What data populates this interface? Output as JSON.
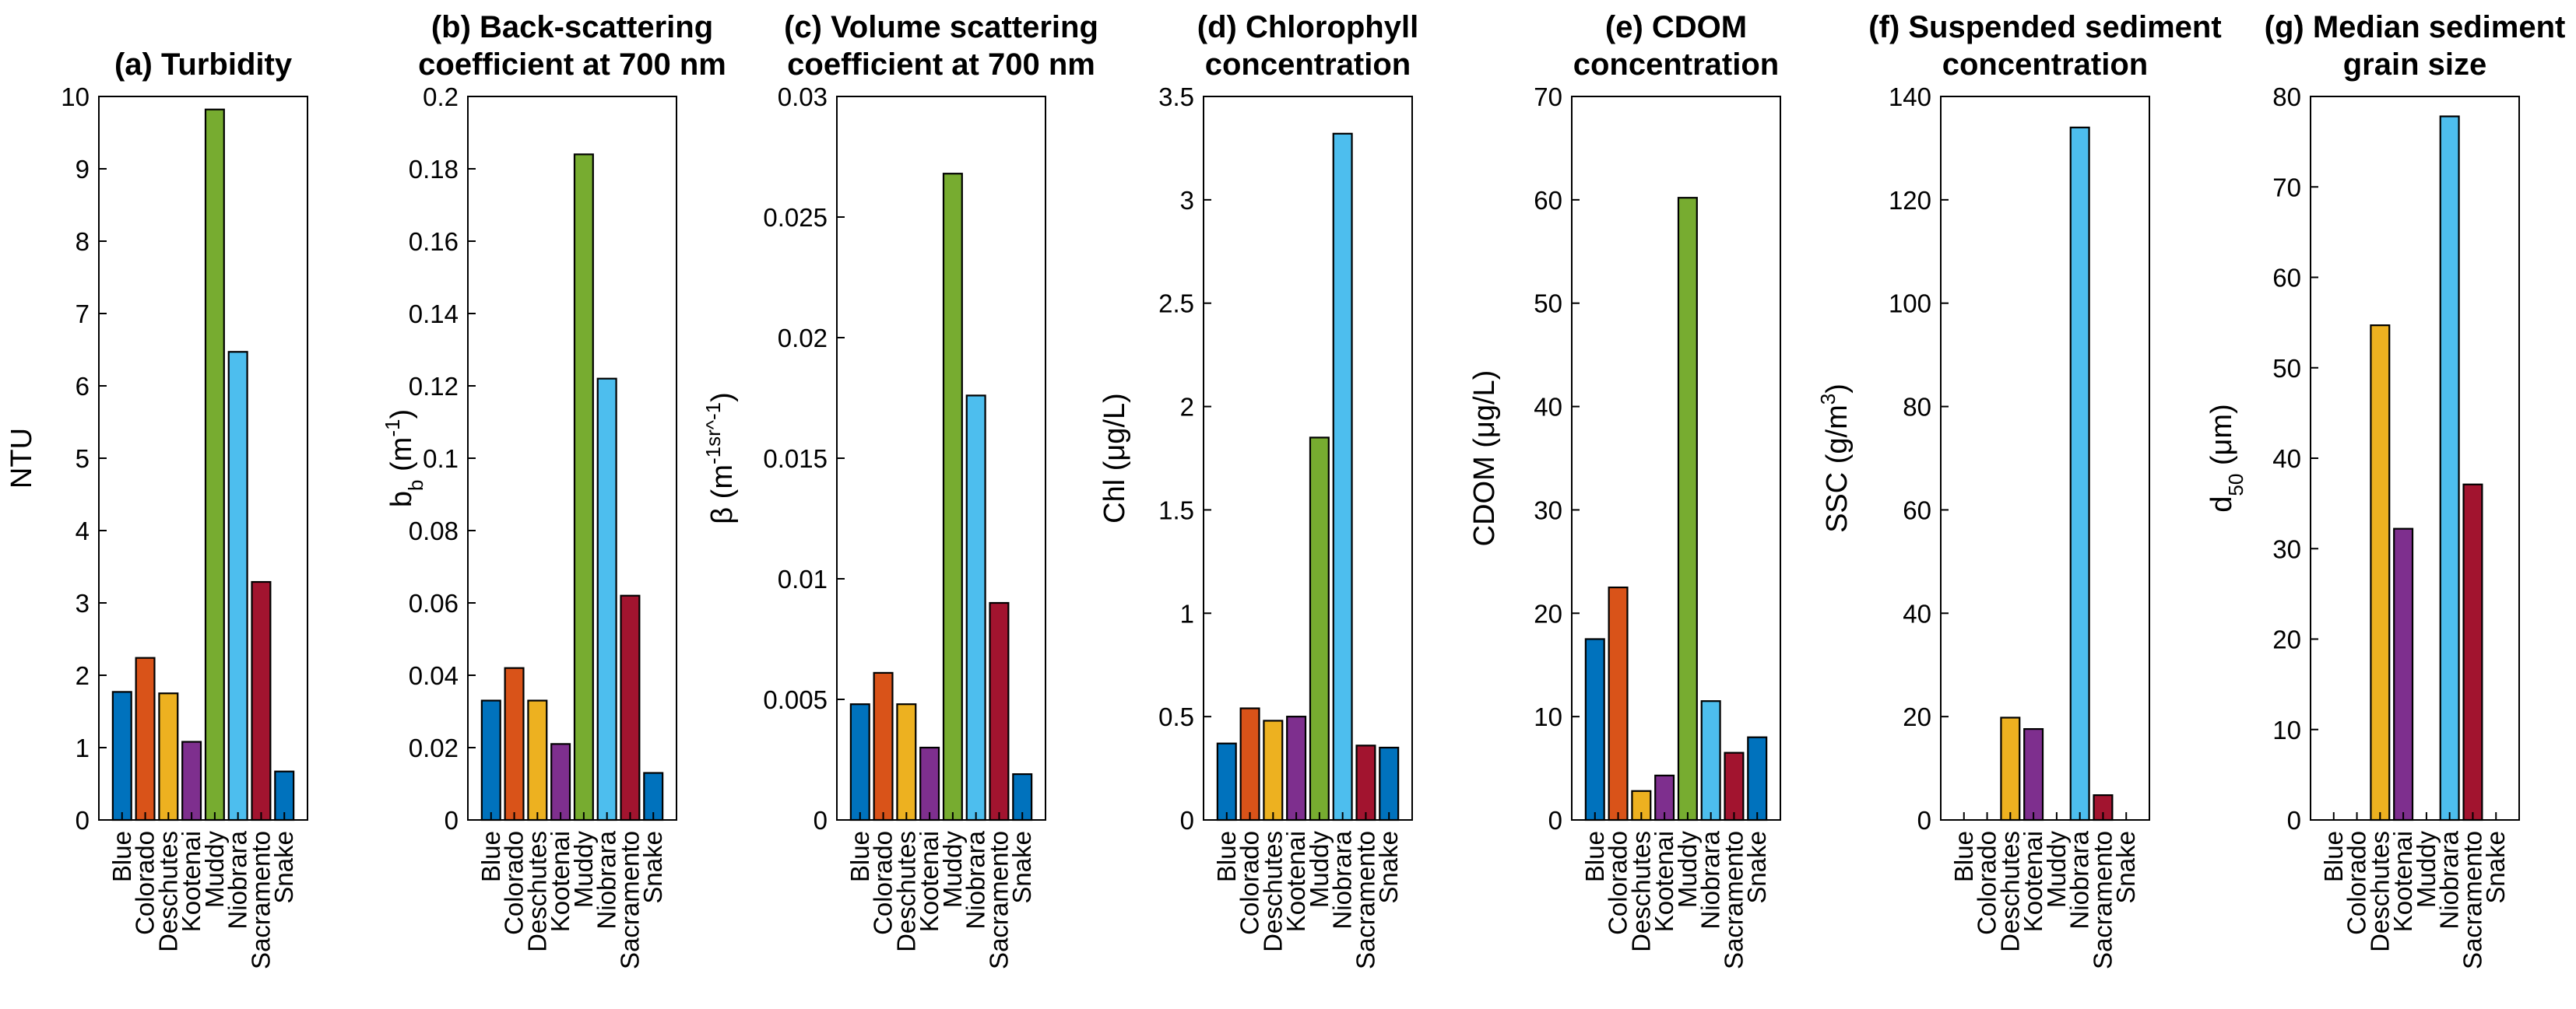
{
  "chart_data": [
    {
      "type": "bar",
      "title": [
        "(a) Turbidity"
      ],
      "ylabel": "NTU",
      "ylim": [
        0,
        10
      ],
      "yticks": [
        0,
        1,
        2,
        3,
        4,
        5,
        6,
        7,
        8,
        9,
        10
      ],
      "ytick_labels": [
        "0",
        "1",
        "2",
        "3",
        "4",
        "5",
        "6",
        "7",
        "8",
        "9",
        "10"
      ],
      "categories": [
        "Blue",
        "Colorado",
        "Deschutes",
        "Kootenai",
        "Muddy",
        "Niobrara",
        "Sacramento",
        "Snake"
      ],
      "values": [
        1.77,
        2.24,
        1.75,
        1.08,
        9.82,
        6.47,
        3.29,
        0.67
      ],
      "colors": [
        "#0072BD",
        "#D95319",
        "#EDB120",
        "#7E2F8E",
        "#77AC30",
        "#4DBEEE",
        "#A2142F",
        "#0072BD"
      ]
    },
    {
      "type": "bar",
      "title": [
        "(b) Back-scattering",
        "coefficient at 700 nm"
      ],
      "ylabel": "b_b (m^-1)",
      "ylim": [
        0,
        0.2
      ],
      "yticks": [
        0,
        0.02,
        0.04,
        0.06,
        0.08,
        0.1,
        0.12,
        0.14,
        0.16,
        0.18,
        0.2
      ],
      "ytick_labels": [
        "0",
        "0.02",
        "0.04",
        "0.06",
        "0.08",
        "0.1",
        "0.12",
        "0.14",
        "0.16",
        "0.18",
        "0.2"
      ],
      "categories": [
        "Blue",
        "Colorado",
        "Deschutes",
        "Kootenai",
        "Muddy",
        "Niobrara",
        "Sacramento",
        "Snake"
      ],
      "values": [
        0.033,
        0.042,
        0.033,
        0.021,
        0.184,
        0.122,
        0.062,
        0.013
      ],
      "colors": [
        "#0072BD",
        "#D95319",
        "#EDB120",
        "#7E2F8E",
        "#77AC30",
        "#4DBEEE",
        "#A2142F",
        "#0072BD"
      ]
    },
    {
      "type": "bar",
      "title": [
        "(c) Volume scattering",
        "coefficient at 700 nm"
      ],
      "ylabel": "β (m^-1sr^-1)",
      "ylim": [
        0,
        0.03
      ],
      "yticks": [
        0,
        0.005,
        0.01,
        0.015,
        0.02,
        0.025,
        0.03
      ],
      "ytick_labels": [
        "0",
        "0.005",
        "0.01",
        "0.015",
        "0.02",
        "0.025",
        "0.03"
      ],
      "categories": [
        "Blue",
        "Colorado",
        "Deschutes",
        "Kootenai",
        "Muddy",
        "Niobrara",
        "Sacramento",
        "Snake"
      ],
      "values": [
        0.0048,
        0.0061,
        0.0048,
        0.003,
        0.0268,
        0.0176,
        0.009,
        0.0019
      ],
      "colors": [
        "#0072BD",
        "#D95319",
        "#EDB120",
        "#7E2F8E",
        "#77AC30",
        "#4DBEEE",
        "#A2142F",
        "#0072BD"
      ]
    },
    {
      "type": "bar",
      "title": [
        "(d) Chlorophyll",
        "concentration"
      ],
      "ylabel": "Chl (μg/L)",
      "ylim": [
        0,
        3.5
      ],
      "yticks": [
        0,
        0.5,
        1,
        1.5,
        2,
        2.5,
        3,
        3.5
      ],
      "ytick_labels": [
        "0",
        "0.5",
        "1",
        "1.5",
        "2",
        "2.5",
        "3",
        "3.5"
      ],
      "categories": [
        "Blue",
        "Colorado",
        "Deschutes",
        "Kootenai",
        "Muddy",
        "Niobrara",
        "Sacramento",
        "Snake"
      ],
      "values": [
        0.37,
        0.54,
        0.48,
        0.5,
        1.85,
        3.32,
        0.36,
        0.35
      ],
      "colors": [
        "#0072BD",
        "#D95319",
        "#EDB120",
        "#7E2F8E",
        "#77AC30",
        "#4DBEEE",
        "#A2142F",
        "#0072BD"
      ]
    },
    {
      "type": "bar",
      "title": [
        "(e) CDOM",
        "concentration"
      ],
      "ylabel": "CDOM (μg/L)",
      "ylim": [
        0,
        70
      ],
      "yticks": [
        0,
        10,
        20,
        30,
        40,
        50,
        60,
        70
      ],
      "ytick_labels": [
        "0",
        "10",
        "20",
        "30",
        "40",
        "50",
        "60",
        "70"
      ],
      "categories": [
        "Blue",
        "Colorado",
        "Deschutes",
        "Kootenai",
        "Muddy",
        "Niobrara",
        "Sacramento",
        "Snake"
      ],
      "values": [
        17.5,
        22.5,
        2.8,
        4.3,
        60.2,
        11.5,
        6.5,
        8.0
      ],
      "colors": [
        "#0072BD",
        "#D95319",
        "#EDB120",
        "#7E2F8E",
        "#77AC30",
        "#4DBEEE",
        "#A2142F",
        "#0072BD"
      ]
    },
    {
      "type": "bar",
      "title": [
        "(f) Suspended sediment",
        "concentration"
      ],
      "ylabel": "SSC (g/m^3)",
      "ylim": [
        0,
        140
      ],
      "yticks": [
        0,
        20,
        40,
        60,
        80,
        100,
        120,
        140
      ],
      "ytick_labels": [
        "0",
        "20",
        "40",
        "60",
        "80",
        "100",
        "120",
        "140"
      ],
      "categories": [
        "Blue",
        "Colorado",
        "Deschutes",
        "Kootenai",
        "Muddy",
        "Niobrara",
        "Sacramento",
        "Snake"
      ],
      "values": [
        0,
        0,
        19.8,
        17.6,
        0,
        134,
        4.8,
        0
      ],
      "colors": [
        "#0072BD",
        "#D95319",
        "#EDB120",
        "#7E2F8E",
        "#77AC30",
        "#4DBEEE",
        "#A2142F",
        "#0072BD"
      ]
    },
    {
      "type": "bar",
      "title": [
        "(g) Median sediment",
        "grain size"
      ],
      "ylabel": "d_50 (μm)",
      "ylim": [
        0,
        80
      ],
      "yticks": [
        0,
        10,
        20,
        30,
        40,
        50,
        60,
        70,
        80
      ],
      "ytick_labels": [
        "0",
        "10",
        "20",
        "30",
        "40",
        "50",
        "60",
        "70",
        "80"
      ],
      "categories": [
        "Blue",
        "Colorado",
        "Deschutes",
        "Kootenai",
        "Muddy",
        "Niobrara",
        "Sacramento",
        "Snake"
      ],
      "values": [
        0,
        0,
        54.7,
        32.2,
        0,
        77.8,
        37.1,
        0
      ],
      "colors": [
        "#0072BD",
        "#D95319",
        "#EDB120",
        "#7E2F8E",
        "#77AC30",
        "#4DBEEE",
        "#A2142F",
        "#0072BD"
      ]
    }
  ]
}
